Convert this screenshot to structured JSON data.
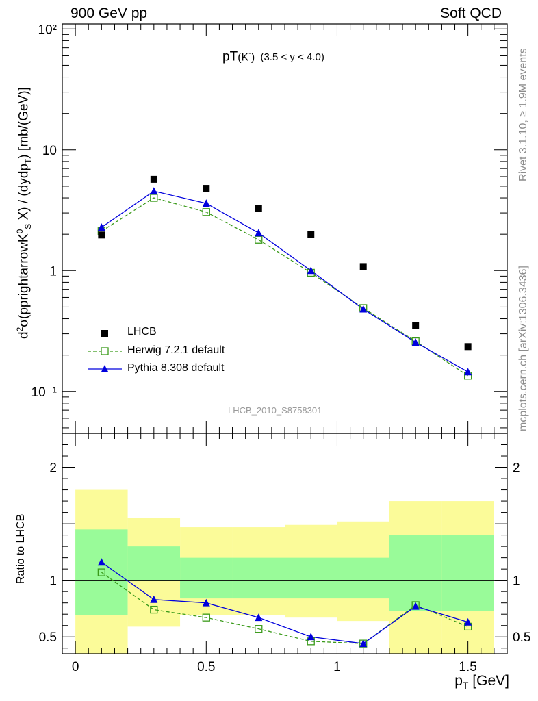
{
  "header": {
    "left": "900 GeV pp",
    "right": "Soft QCD"
  },
  "side": {
    "rivet": "Rivet 3.1.10, ≥ 1.9M events",
    "mcplots": "mcplots.cern.ch [arXiv:1306.3436]"
  },
  "plot_title": {
    "main": "pT",
    "particle": "(K",
    "particle_sup": "-",
    "particle_close": ")",
    "range": "(3.5 < y < 4.0)"
  },
  "analysis_tag": "LHCB_2010_S8758301",
  "top_ylabel": {
    "p1": "d",
    "p1sup": "2",
    "p2": "σ(pprightarrowK",
    "p2sup": "0",
    "p2sub": "S",
    "p3": " X) / (dydp",
    "p3sub": "T",
    "p4": ") [mb/(GeV)]"
  },
  "bottom_ylabel": "Ratio to LHCB",
  "xlabel": {
    "main": "p",
    "sub": "T",
    "unit": " [GeV]"
  },
  "legend": [
    "LHCB",
    "Herwig 7.2.1 default",
    "Pythia 8.308 default"
  ],
  "colors": {
    "data": "#000000",
    "herwig": "#3a9a1a",
    "pythia": "#0000dd",
    "band_inner": "#99fb99",
    "band_outer": "#fbfb99"
  },
  "chart_data": [
    {
      "type": "scatter",
      "title": "pT(K-) (3.5 < y < 4.0)",
      "xlabel": "pT [GeV]",
      "ylabel": "d2σ(pprightarrowK0S X) / (dydpT) [mb/(GeV)]",
      "log_y": true,
      "xlim": [
        -0.05,
        1.65
      ],
      "ylim": [
        0.045,
        110
      ],
      "x_ticks": [
        "0",
        "0.5",
        "1",
        "1.5"
      ],
      "y_ticks": [
        "10⁻¹",
        "1",
        "10",
        "10²"
      ],
      "legend_position": "bottom-left",
      "x": [
        0.1,
        0.3,
        0.5,
        0.7,
        0.9,
        1.1,
        1.3,
        1.5
      ],
      "series": [
        {
          "name": "LHCB",
          "values": [
            1.97,
            5.7,
            4.8,
            3.25,
            2.0,
            1.08,
            0.35,
            0.235
          ]
        },
        {
          "name": "Herwig 7.2.1 default",
          "values": [
            2.12,
            4.0,
            3.05,
            1.8,
            0.96,
            0.49,
            0.26,
            0.135
          ]
        },
        {
          "name": "Pythia 8.308 default",
          "values": [
            2.28,
            4.55,
            3.6,
            2.05,
            1.0,
            0.48,
            0.255,
            0.145
          ]
        }
      ]
    },
    {
      "type": "line",
      "ylabel": "Ratio to LHCB",
      "xlabel": "pT [GeV]",
      "xlim": [
        -0.05,
        1.65
      ],
      "ylim": [
        0.35,
        2.3
      ],
      "y_ticks": [
        "0.5",
        "1",
        "2"
      ],
      "x": [
        0.1,
        0.3,
        0.5,
        0.7,
        0.9,
        1.1,
        1.3,
        1.5
      ],
      "bins": [
        [
          0.0,
          0.2
        ],
        [
          0.2,
          0.4
        ],
        [
          0.4,
          0.6
        ],
        [
          0.6,
          0.8
        ],
        [
          0.8,
          1.0
        ],
        [
          1.0,
          1.2
        ],
        [
          1.2,
          1.4
        ],
        [
          1.4,
          1.6
        ]
      ],
      "band_inner": [
        [
          0.69,
          1.45
        ],
        [
          1.0,
          1.3
        ],
        [
          0.84,
          1.2
        ],
        [
          0.84,
          1.2
        ],
        [
          0.84,
          1.2
        ],
        [
          0.84,
          1.2
        ],
        [
          0.73,
          1.4
        ],
        [
          0.73,
          1.4
        ]
      ],
      "band_outer": [
        [
          0.0,
          1.8
        ],
        [
          0.59,
          1.55
        ],
        [
          0.69,
          1.47
        ],
        [
          0.69,
          1.47
        ],
        [
          0.67,
          1.49
        ],
        [
          0.64,
          1.52
        ],
        [
          0.0,
          1.7
        ],
        [
          0.0,
          1.7
        ]
      ],
      "series": [
        {
          "name": "Herwig 7.2.1 default",
          "values": [
            1.07,
            0.74,
            0.67,
            0.57,
            0.46,
            0.44,
            0.78,
            0.59
          ]
        },
        {
          "name": "Pythia 8.308 default",
          "values": [
            1.16,
            0.83,
            0.8,
            0.67,
            0.5,
            0.44,
            0.77,
            0.63
          ]
        }
      ]
    }
  ]
}
